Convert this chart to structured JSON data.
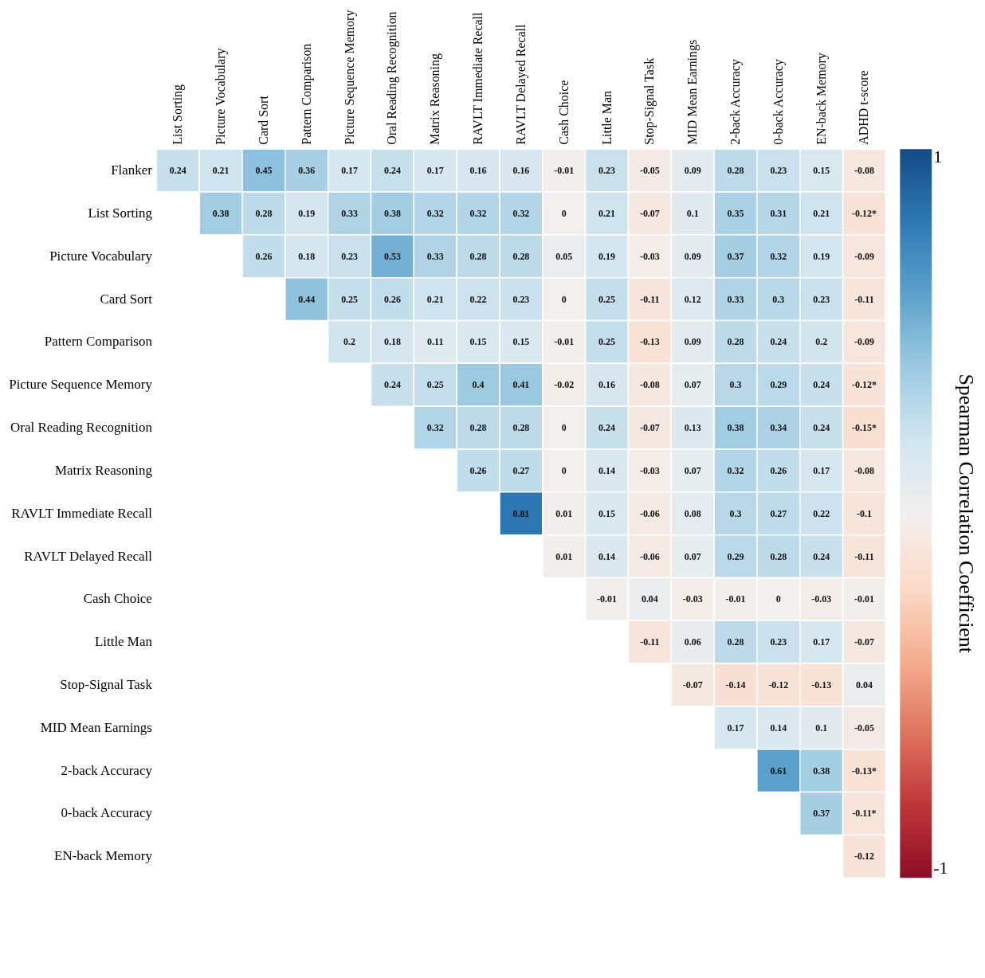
{
  "chart_data": {
    "type": "heatmap",
    "clabel": "Spearman Correlation Coefficient",
    "categories": [
      "List Sorting",
      "Picture Vocabulary",
      "Card Sort",
      "Pattern Comparison",
      "Picture Sequence Memory",
      "Oral Reading Recognition",
      "Matrix Reasoning",
      "RAVLT Immediate Recall",
      "RAVLT Delayed Recall",
      "Cash Choice",
      "Little Man",
      "Stop-Signal Task",
      "MID Mean Earnings",
      "2-back Accuracy",
      "0-back Accuracy",
      "EN-back Memory",
      "ADHD t-score"
    ],
    "y_categories": [
      "Flanker",
      "List Sorting",
      "Picture Vocabulary",
      "Card Sort",
      "Pattern Comparison",
      "Picture Sequence Memory",
      "Oral Reading Recognition",
      "Matrix Reasoning",
      "RAVLT Immediate Recall",
      "RAVLT Delayed Recall",
      "Cash Choice",
      "Little Man",
      "Stop-Signal Task",
      "MID Mean Earnings",
      "2-back Accuracy",
      "0-back Accuracy",
      "EN-back Memory"
    ],
    "cells": [
      [
        0.24,
        0.21,
        0.45,
        0.36,
        0.17,
        0.24,
        0.17,
        0.16,
        0.16,
        -0.01,
        0.23,
        -0.05,
        0.09,
        0.28,
        0.23,
        0.15,
        -0.08
      ],
      [
        null,
        0.38,
        0.28,
        0.19,
        0.33,
        0.38,
        0.32,
        0.32,
        0.32,
        0,
        0.21,
        -0.07,
        0.1,
        0.35,
        0.31,
        0.21,
        -0.12
      ],
      [
        null,
        null,
        0.26,
        0.18,
        0.23,
        0.53,
        0.33,
        0.28,
        0.28,
        0.05,
        0.19,
        -0.03,
        0.09,
        0.37,
        0.32,
        0.19,
        -0.09
      ],
      [
        null,
        null,
        null,
        0.44,
        0.25,
        0.26,
        0.21,
        0.22,
        0.23,
        0,
        0.25,
        -0.11,
        0.12,
        0.33,
        0.3,
        0.23,
        -0.11
      ],
      [
        null,
        null,
        null,
        null,
        0.2,
        0.18,
        0.11,
        0.15,
        0.15,
        -0.01,
        0.25,
        -0.13,
        0.09,
        0.28,
        0.24,
        0.2,
        -0.09
      ],
      [
        null,
        null,
        null,
        null,
        null,
        0.24,
        0.25,
        0.4,
        0.41,
        -0.02,
        0.16,
        -0.08,
        0.07,
        0.3,
        0.29,
        0.24,
        -0.12
      ],
      [
        null,
        null,
        null,
        null,
        null,
        null,
        0.32,
        0.28,
        0.28,
        0,
        0.24,
        -0.07,
        0.13,
        0.38,
        0.34,
        0.24,
        -0.15
      ],
      [
        null,
        null,
        null,
        null,
        null,
        null,
        null,
        0.26,
        0.27,
        0,
        0.14,
        -0.03,
        0.07,
        0.32,
        0.26,
        0.17,
        -0.08
      ],
      [
        null,
        null,
        null,
        null,
        null,
        null,
        null,
        null,
        0.81,
        0.01,
        0.15,
        -0.06,
        0.08,
        0.3,
        0.27,
        0.22,
        -0.1
      ],
      [
        null,
        null,
        null,
        null,
        null,
        null,
        null,
        null,
        null,
        0.01,
        0.14,
        -0.06,
        0.07,
        0.29,
        0.28,
        0.24,
        -0.11
      ],
      [
        null,
        null,
        null,
        null,
        null,
        null,
        null,
        null,
        null,
        null,
        -0.01,
        0.04,
        -0.03,
        -0.01,
        0,
        -0.03,
        -0.01
      ],
      [
        null,
        null,
        null,
        null,
        null,
        null,
        null,
        null,
        null,
        null,
        null,
        -0.11,
        0.06,
        0.28,
        0.23,
        0.17,
        -0.07
      ],
      [
        null,
        null,
        null,
        null,
        null,
        null,
        null,
        null,
        null,
        null,
        null,
        null,
        -0.07,
        -0.14,
        -0.12,
        -0.13,
        0.04
      ],
      [
        null,
        null,
        null,
        null,
        null,
        null,
        null,
        null,
        null,
        null,
        null,
        null,
        null,
        0.17,
        0.14,
        0.1,
        -0.05
      ],
      [
        null,
        null,
        null,
        null,
        null,
        null,
        null,
        null,
        null,
        null,
        null,
        null,
        null,
        null,
        0.61,
        0.38,
        -0.13
      ],
      [
        null,
        null,
        null,
        null,
        null,
        null,
        null,
        null,
        null,
        null,
        null,
        null,
        null,
        null,
        null,
        0.37,
        -0.11
      ],
      [
        null,
        null,
        null,
        null,
        null,
        null,
        null,
        null,
        null,
        null,
        null,
        null,
        null,
        null,
        null,
        null,
        -0.12
      ]
    ],
    "cell_labels": [
      [
        "0.24",
        "0.21",
        "0.45",
        "0.36",
        "0.17",
        "0.24",
        "0.17",
        "0.16",
        "0.16",
        "-0.01",
        "0.23",
        "-0.05",
        "0.09",
        "0.28",
        "0.23",
        "0.15",
        "-0.08"
      ],
      [
        null,
        "0.38",
        "0.28",
        "0.19",
        "0.33",
        "0.38",
        "0.32",
        "0.32",
        "0.32",
        "0",
        "0.21",
        "-0.07",
        "0.1",
        "0.35",
        "0.31",
        "0.21",
        "-0.12*"
      ],
      [
        null,
        null,
        "0.26",
        "0.18",
        "0.23",
        "0.53",
        "0.33",
        "0.28",
        "0.28",
        "0.05",
        "0.19",
        "-0.03",
        "0.09",
        "0.37",
        "0.32",
        "0.19",
        "-0.09"
      ],
      [
        null,
        null,
        null,
        "0.44",
        "0.25",
        "0.26",
        "0.21",
        "0.22",
        "0.23",
        "0",
        "0.25",
        "-0.11",
        "0.12",
        "0.33",
        "0.3",
        "0.23",
        "-0.11"
      ],
      [
        null,
        null,
        null,
        null,
        "0.2",
        "0.18",
        "0.11",
        "0.15",
        "0.15",
        "-0.01",
        "0.25",
        "-0.13",
        "0.09",
        "0.28",
        "0.24",
        "0.2",
        "-0.09"
      ],
      [
        null,
        null,
        null,
        null,
        null,
        "0.24",
        "0.25",
        "0.4",
        "0.41",
        "-0.02",
        "0.16",
        "-0.08",
        "0.07",
        "0.3",
        "0.29",
        "0.24",
        "-0.12*"
      ],
      [
        null,
        null,
        null,
        null,
        null,
        null,
        "0.32",
        "0.28",
        "0.28",
        "0",
        "0.24",
        "-0.07",
        "0.13",
        "0.38",
        "0.34",
        "0.24",
        "-0.15*"
      ],
      [
        null,
        null,
        null,
        null,
        null,
        null,
        null,
        "0.26",
        "0.27",
        "0",
        "0.14",
        "-0.03",
        "0.07",
        "0.32",
        "0.26",
        "0.17",
        "-0.08"
      ],
      [
        null,
        null,
        null,
        null,
        null,
        null,
        null,
        null,
        "0.81",
        "0.01",
        "0.15",
        "-0.06",
        "0.08",
        "0.3",
        "0.27",
        "0.22",
        "-0.1"
      ],
      [
        null,
        null,
        null,
        null,
        null,
        null,
        null,
        null,
        null,
        "0.01",
        "0.14",
        "-0.06",
        "0.07",
        "0.29",
        "0.28",
        "0.24",
        "-0.11"
      ],
      [
        null,
        null,
        null,
        null,
        null,
        null,
        null,
        null,
        null,
        null,
        "-0.01",
        "0.04",
        "-0.03",
        "-0.01",
        "0",
        "-0.03",
        "-0.01"
      ],
      [
        null,
        null,
        null,
        null,
        null,
        null,
        null,
        null,
        null,
        null,
        null,
        "-0.11",
        "0.06",
        "0.28",
        "0.23",
        "0.17",
        "-0.07"
      ],
      [
        null,
        null,
        null,
        null,
        null,
        null,
        null,
        null,
        null,
        null,
        null,
        null,
        "-0.07",
        "-0.14",
        "-0.12",
        "-0.13",
        "0.04"
      ],
      [
        null,
        null,
        null,
        null,
        null,
        null,
        null,
        null,
        null,
        null,
        null,
        null,
        null,
        "0.17",
        "0.14",
        "0.1",
        "-0.05"
      ],
      [
        null,
        null,
        null,
        null,
        null,
        null,
        null,
        null,
        null,
        null,
        null,
        null,
        null,
        null,
        "0.61",
        "0.38",
        "-0.13*"
      ],
      [
        null,
        null,
        null,
        null,
        null,
        null,
        null,
        null,
        null,
        null,
        null,
        null,
        null,
        null,
        null,
        "0.37",
        "-0.11*"
      ],
      [
        null,
        null,
        null,
        null,
        null,
        null,
        null,
        null,
        null,
        null,
        null,
        null,
        null,
        null,
        null,
        null,
        "-0.12"
      ]
    ],
    "clim": [
      1,
      -1
    ],
    "cticks": [
      1,
      -1
    ],
    "data_labels": true
  }
}
